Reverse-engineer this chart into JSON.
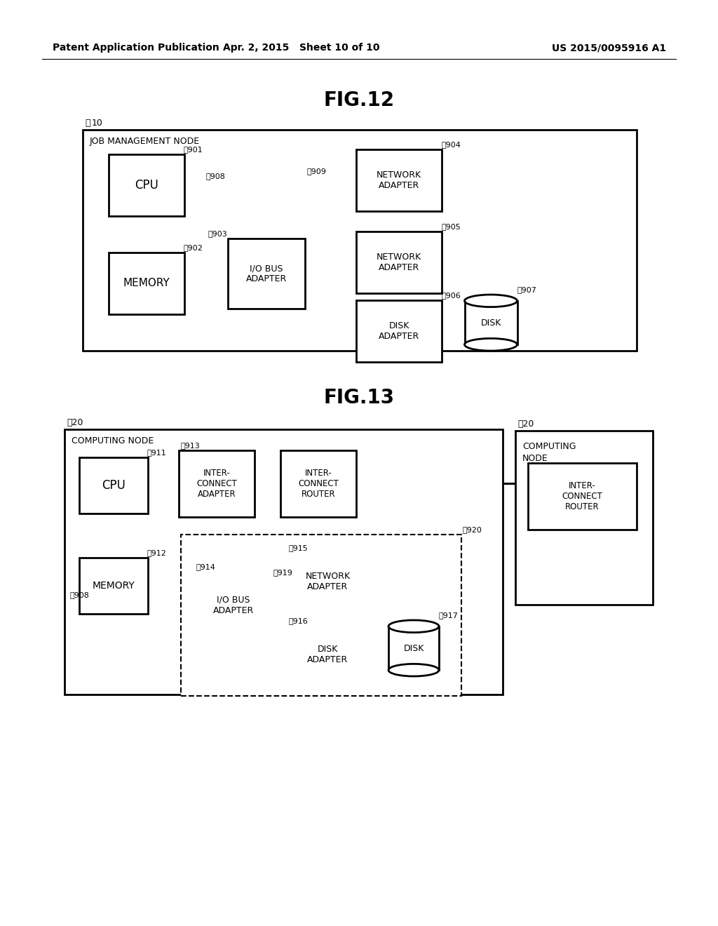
{
  "bg_color": "#ffffff",
  "header_left": "Patent Application Publication",
  "header_mid": "Apr. 2, 2015   Sheet 10 of 10",
  "header_right": "US 2015/0095916 A1",
  "fig12_title": "FIG.12",
  "fig13_title": "FIG.13"
}
